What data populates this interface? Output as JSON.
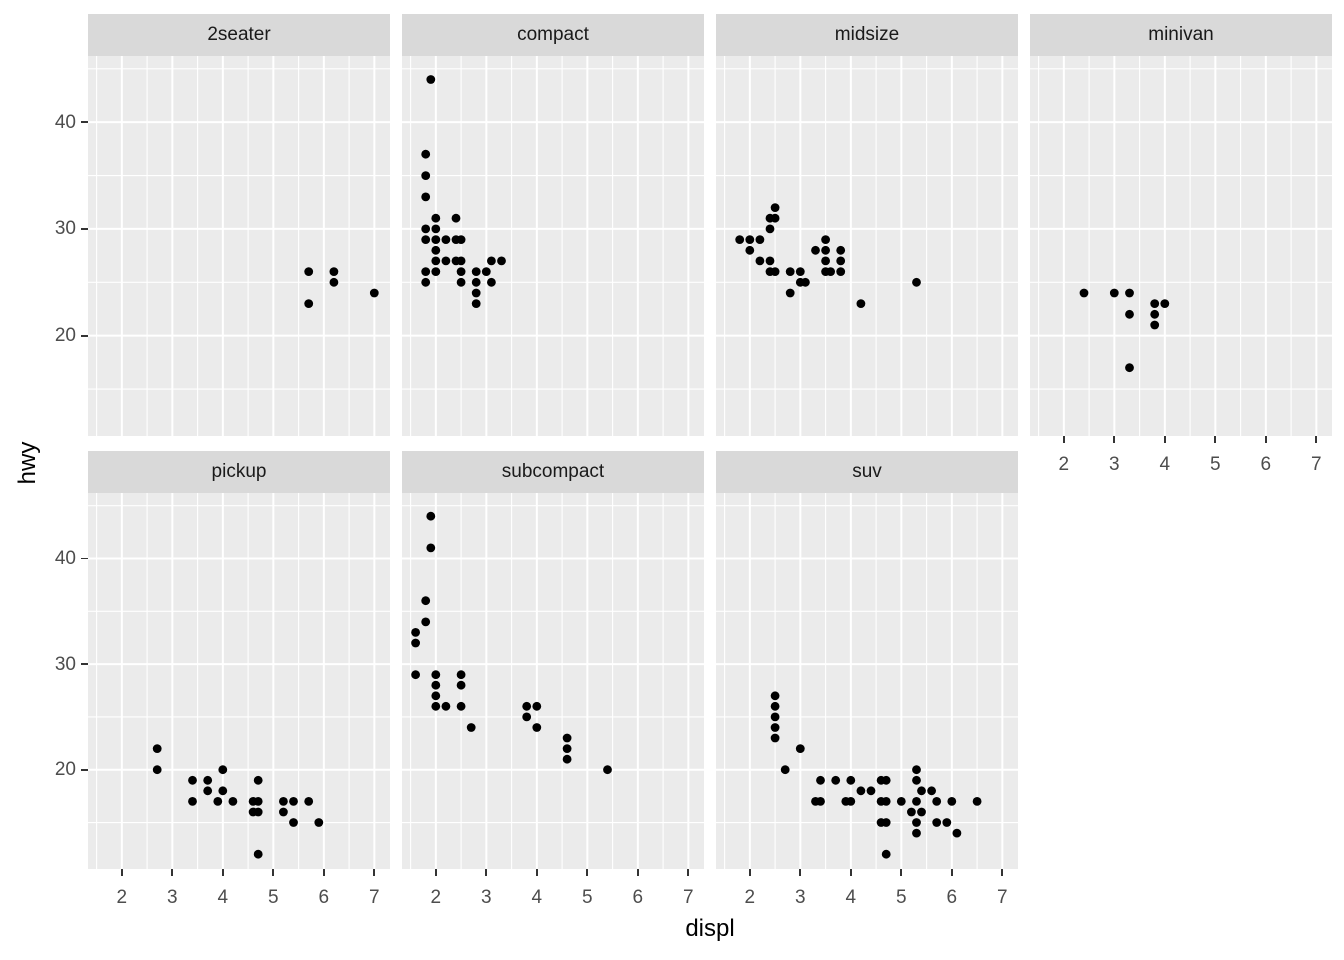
{
  "figure": {
    "colors": {
      "background": "#ffffff",
      "panel_bg": "#ebebeb",
      "strip_bg": "#d9d9d9",
      "strip_text": "#1a1a1a",
      "gridline": "#ffffff",
      "point": "#000000",
      "tick_label": "#4d4d4d",
      "tick_mark": "#333333",
      "axis_title": "#000000"
    }
  },
  "chart_data": {
    "type": "scatter",
    "title": "",
    "xlabel": "displ",
    "ylabel": "hwy",
    "facet_by": "class",
    "legend": "none",
    "grid": "on",
    "x_ticks": [
      2,
      3,
      4,
      5,
      6,
      7
    ],
    "y_ticks": [
      20,
      30,
      40
    ],
    "x_minor": [
      1.5,
      2.5,
      3.5,
      4.5,
      5.5,
      6.5
    ],
    "y_minor": [
      15,
      25,
      35,
      45
    ],
    "x_range": [
      1.33,
      7.31
    ],
    "y_range": [
      10.6,
      46.2
    ],
    "facets": [
      {
        "label": "2seater",
        "points": [
          [
            5.7,
            26
          ],
          [
            5.7,
            23
          ],
          [
            6.2,
            26
          ],
          [
            6.2,
            25
          ],
          [
            7.0,
            24
          ]
        ]
      },
      {
        "label": "compact",
        "points": [
          [
            1.9,
            44
          ],
          [
            1.8,
            37
          ],
          [
            1.8,
            35
          ],
          [
            1.8,
            33
          ],
          [
            2.0,
            31
          ],
          [
            2.4,
            31
          ],
          [
            1.8,
            30
          ],
          [
            2.0,
            30
          ],
          [
            1.8,
            29
          ],
          [
            2.0,
            29
          ],
          [
            2.2,
            29
          ],
          [
            2.4,
            29
          ],
          [
            2.5,
            29
          ],
          [
            2.0,
            28
          ],
          [
            2.0,
            27
          ],
          [
            2.2,
            27
          ],
          [
            2.4,
            27
          ],
          [
            2.5,
            27
          ],
          [
            3.1,
            27
          ],
          [
            3.3,
            27
          ],
          [
            1.8,
            26
          ],
          [
            2.0,
            26
          ],
          [
            2.5,
            26
          ],
          [
            2.8,
            26
          ],
          [
            3.0,
            26
          ],
          [
            1.8,
            25
          ],
          [
            2.5,
            25
          ],
          [
            2.8,
            25
          ],
          [
            3.1,
            25
          ],
          [
            2.8,
            24
          ],
          [
            2.8,
            23
          ]
        ]
      },
      {
        "label": "midsize",
        "points": [
          [
            2.5,
            32
          ],
          [
            2.4,
            31
          ],
          [
            2.5,
            31
          ],
          [
            2.4,
            30
          ],
          [
            1.8,
            29
          ],
          [
            2.0,
            29
          ],
          [
            2.2,
            29
          ],
          [
            3.5,
            29
          ],
          [
            2.0,
            28
          ],
          [
            3.3,
            28
          ],
          [
            3.5,
            28
          ],
          [
            3.8,
            28
          ],
          [
            2.2,
            27
          ],
          [
            2.4,
            27
          ],
          [
            3.5,
            27
          ],
          [
            3.8,
            27
          ],
          [
            2.4,
            26
          ],
          [
            2.5,
            26
          ],
          [
            2.8,
            26
          ],
          [
            3.0,
            26
          ],
          [
            3.5,
            26
          ],
          [
            3.6,
            26
          ],
          [
            3.8,
            26
          ],
          [
            3.0,
            25
          ],
          [
            3.1,
            25
          ],
          [
            5.3,
            25
          ],
          [
            2.8,
            24
          ],
          [
            4.2,
            23
          ]
        ]
      },
      {
        "label": "minivan",
        "points": [
          [
            2.4,
            24
          ],
          [
            3.0,
            24
          ],
          [
            3.3,
            24
          ],
          [
            3.8,
            23
          ],
          [
            4.0,
            23
          ],
          [
            3.3,
            22
          ],
          [
            3.8,
            22
          ],
          [
            3.8,
            21
          ],
          [
            3.3,
            17
          ]
        ]
      },
      {
        "label": "pickup",
        "points": [
          [
            2.7,
            22
          ],
          [
            2.7,
            20
          ],
          [
            4.0,
            20
          ],
          [
            3.4,
            19
          ],
          [
            3.7,
            19
          ],
          [
            4.7,
            19
          ],
          [
            3.7,
            18
          ],
          [
            4.0,
            18
          ],
          [
            3.4,
            17
          ],
          [
            3.9,
            17
          ],
          [
            4.2,
            17
          ],
          [
            4.6,
            17
          ],
          [
            4.7,
            17
          ],
          [
            5.2,
            17
          ],
          [
            5.4,
            17
          ],
          [
            5.7,
            17
          ],
          [
            4.6,
            16
          ],
          [
            4.7,
            16
          ],
          [
            5.2,
            16
          ],
          [
            5.4,
            15
          ],
          [
            5.9,
            15
          ],
          [
            4.7,
            12
          ]
        ]
      },
      {
        "label": "subcompact",
        "points": [
          [
            1.9,
            44
          ],
          [
            1.9,
            41
          ],
          [
            1.8,
            36
          ],
          [
            1.8,
            34
          ],
          [
            1.6,
            33
          ],
          [
            1.6,
            32
          ],
          [
            1.6,
            29
          ],
          [
            2.0,
            29
          ],
          [
            2.5,
            29
          ],
          [
            2.0,
            28
          ],
          [
            2.5,
            28
          ],
          [
            2.0,
            27
          ],
          [
            2.0,
            26
          ],
          [
            2.2,
            26
          ],
          [
            2.5,
            26
          ],
          [
            3.8,
            26
          ],
          [
            4.0,
            26
          ],
          [
            3.8,
            25
          ],
          [
            2.7,
            24
          ],
          [
            4.0,
            24
          ],
          [
            4.6,
            23
          ],
          [
            4.6,
            22
          ],
          [
            4.6,
            21
          ],
          [
            5.4,
            20
          ]
        ]
      },
      {
        "label": "suv",
        "points": [
          [
            2.5,
            27
          ],
          [
            2.5,
            26
          ],
          [
            2.5,
            25
          ],
          [
            2.5,
            24
          ],
          [
            2.5,
            23
          ],
          [
            3.0,
            22
          ],
          [
            2.7,
            20
          ],
          [
            5.3,
            20
          ],
          [
            3.4,
            19
          ],
          [
            3.7,
            19
          ],
          [
            4.0,
            19
          ],
          [
            4.6,
            19
          ],
          [
            4.7,
            19
          ],
          [
            5.3,
            19
          ],
          [
            4.2,
            18
          ],
          [
            4.4,
            18
          ],
          [
            5.4,
            18
          ],
          [
            5.6,
            18
          ],
          [
            3.3,
            17
          ],
          [
            3.4,
            17
          ],
          [
            3.9,
            17
          ],
          [
            4.0,
            17
          ],
          [
            4.6,
            17
          ],
          [
            4.7,
            17
          ],
          [
            5.0,
            17
          ],
          [
            5.3,
            17
          ],
          [
            5.7,
            17
          ],
          [
            6.0,
            17
          ],
          [
            6.5,
            17
          ],
          [
            5.2,
            16
          ],
          [
            5.4,
            16
          ],
          [
            4.6,
            15
          ],
          [
            4.7,
            15
          ],
          [
            5.3,
            15
          ],
          [
            5.7,
            15
          ],
          [
            5.9,
            15
          ],
          [
            5.3,
            14
          ],
          [
            6.1,
            14
          ],
          [
            4.7,
            12
          ]
        ]
      }
    ]
  }
}
